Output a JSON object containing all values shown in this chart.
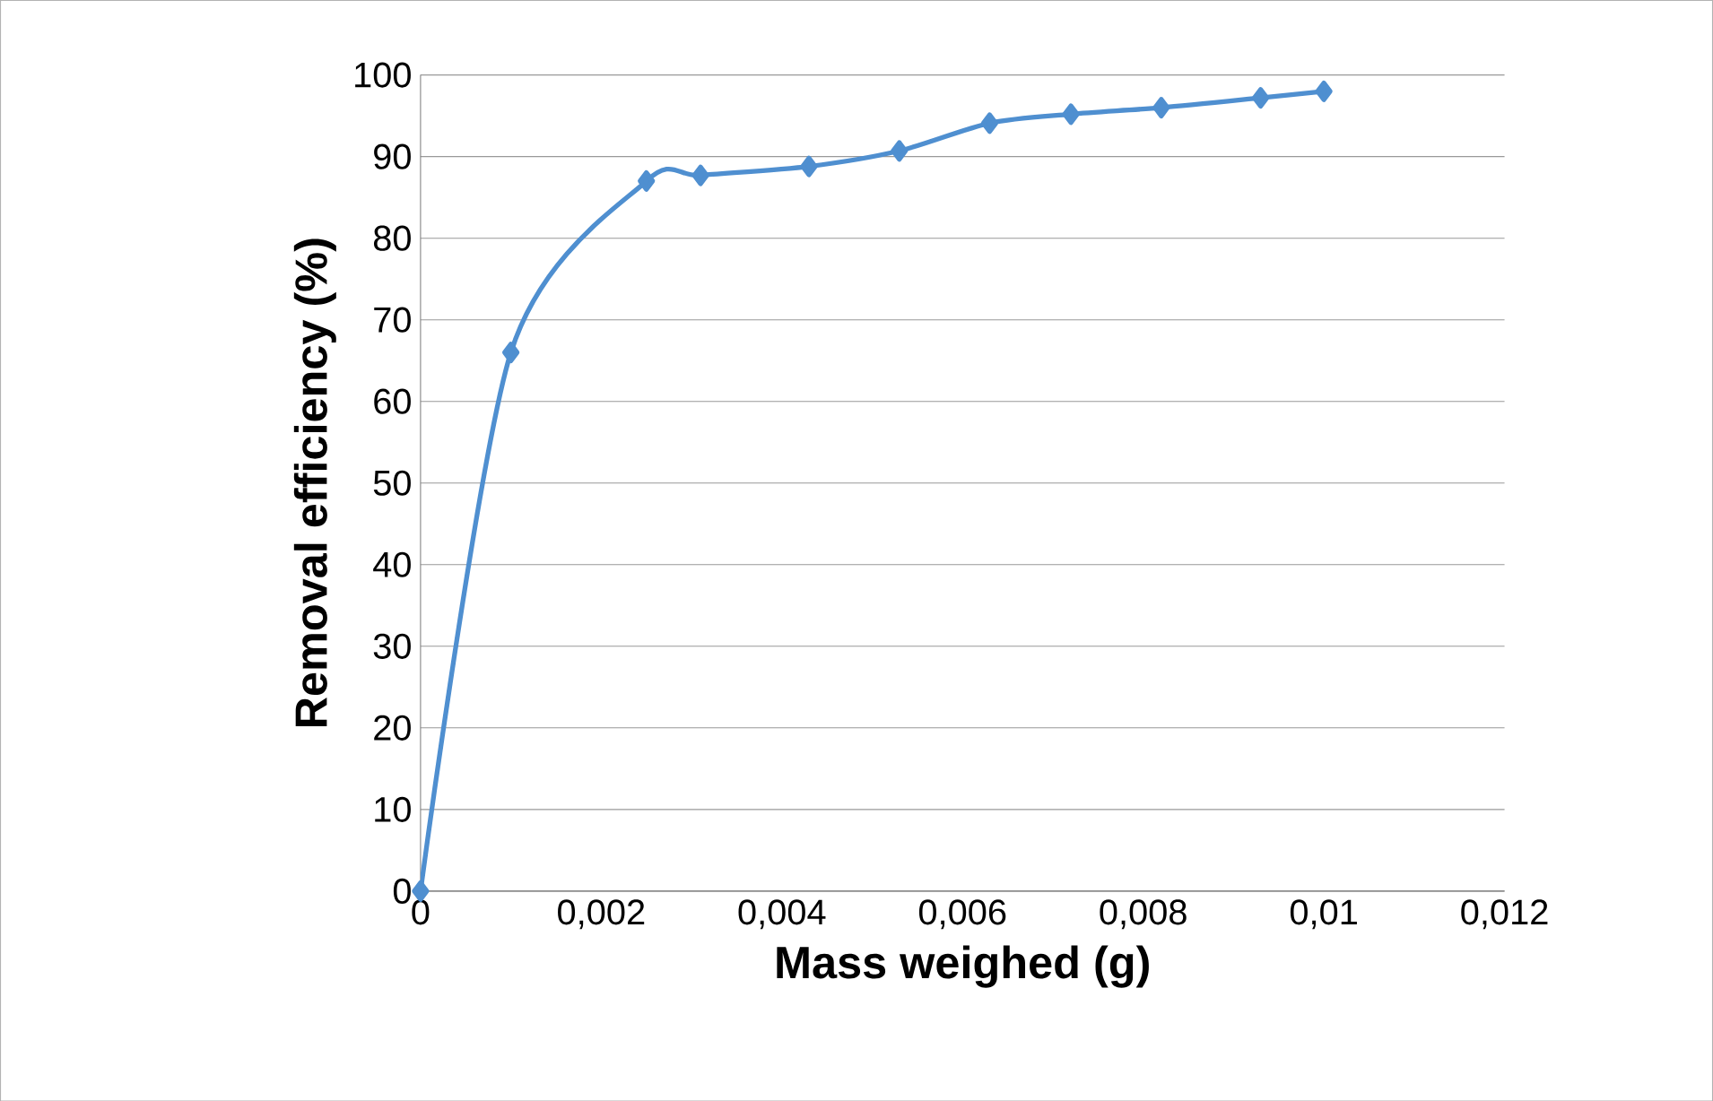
{
  "chart_data": {
    "type": "line",
    "xlabel": "Mass weighed (g)",
    "ylabel": "Removal efficiency (%)",
    "x": [
      0,
      0.001,
      0.0025,
      0.0031,
      0.0043,
      0.0053,
      0.0063,
      0.0072,
      0.0082,
      0.0093,
      0.01
    ],
    "series": [
      {
        "color": "#4f8fd0",
        "values": [
          0,
          66,
          87,
          87.7,
          88.8,
          90.7,
          94.1,
          95.2,
          96,
          97.2,
          98
        ]
      }
    ],
    "xlim": [
      0,
      0.012
    ],
    "ylim": [
      0,
      100
    ],
    "xticks": [
      0,
      {
        "value": 0.002,
        "label": "0,002"
      },
      {
        "value": 0.004,
        "label": "0,004"
      },
      {
        "value": 0.006,
        "label": "0,006"
      },
      {
        "value": 0.008,
        "label": "0,008"
      },
      {
        "value": 0.01,
        "label": "0,01"
      },
      {
        "value": 0.012,
        "label": "0,012"
      }
    ],
    "yticks": [
      0,
      10,
      20,
      30,
      40,
      50,
      60,
      70,
      80,
      90,
      100
    ],
    "grid": "y",
    "marker": "diamond",
    "line_style": "solid"
  }
}
